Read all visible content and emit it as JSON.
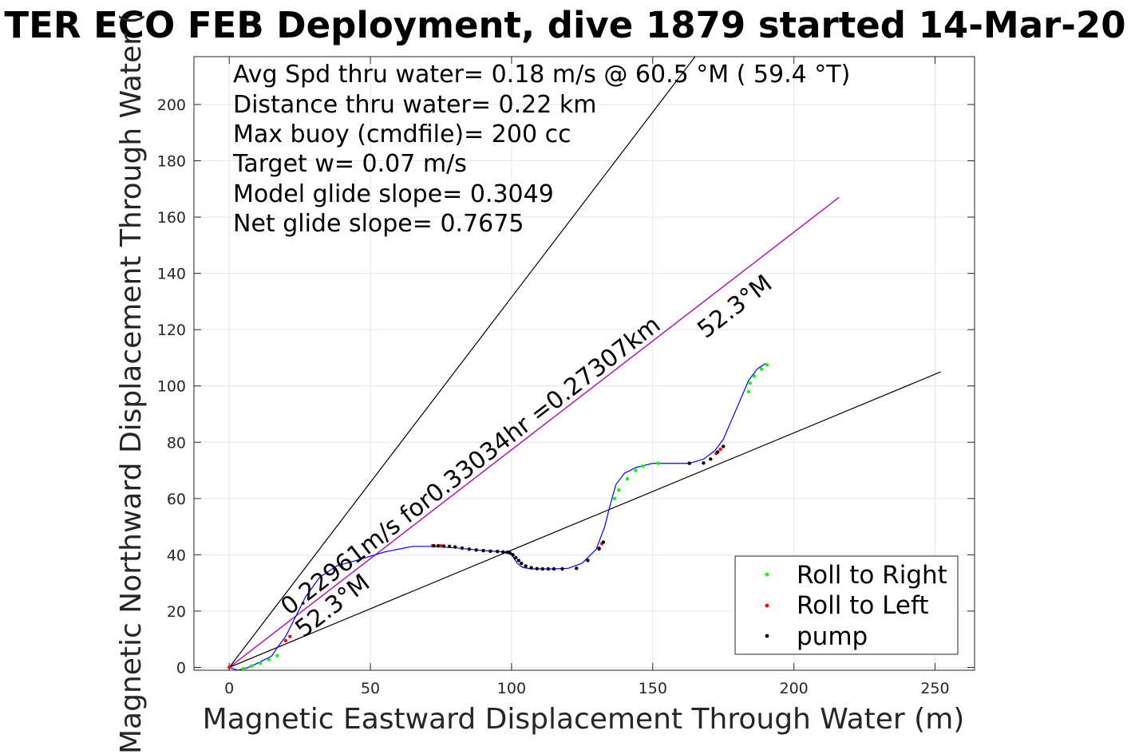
{
  "chart_data": {
    "type": "scatter",
    "title": "TER ECO FEB Deployment, dive 1879 started 14-Mar-20",
    "xlabel": "Magnetic Eastward Displacement Through Water (m)",
    "ylabel": "Magnetic Northward Displacement Through Water (",
    "xlim": [
      -12.5,
      264
    ],
    "ylim": [
      -1,
      217
    ],
    "xticks": [
      0,
      50,
      100,
      150,
      200,
      250
    ],
    "yticks": [
      0,
      20,
      40,
      60,
      80,
      100,
      120,
      140,
      160,
      180,
      200
    ],
    "grid": true,
    "legend_position": "bottom-right",
    "info_lines": [
      "Avg Spd thru water=  0.18 m/s @  60.5 °M ( 59.4 °T)",
      "Distance thru water=  0.22 km",
      "Max buoy (cmdfile)= 200 cc",
      "Target w= 0.07 m/s",
      "Model glide slope= 0.3049",
      "Net glide slope= 0.7675"
    ],
    "annotations": {
      "speed_text": "0.22961m/s for0.33034hr =0.27307km",
      "heading_upper": "52.3°M",
      "heading_lower": "52.3°M"
    },
    "reference_lines": [
      {
        "name": "steep-bound-line",
        "color": "#000000",
        "x": [
          0,
          165
        ],
        "y": [
          0,
          217
        ]
      },
      {
        "name": "heading-line",
        "color": "#000000",
        "x": [
          0,
          216
        ],
        "y": [
          0,
          167
        ]
      },
      {
        "name": "heading-line-overlay",
        "color": "#cc00cc",
        "x": [
          0,
          216
        ],
        "y": [
          0,
          167
        ]
      },
      {
        "name": "shallow-bound-line",
        "color": "#000000",
        "x": [
          0,
          252
        ],
        "y": [
          0,
          105
        ]
      }
    ],
    "track": {
      "color": "#0000ff",
      "x": [
        0,
        3,
        6,
        9,
        12,
        15,
        17,
        20,
        23,
        27,
        32,
        38,
        45,
        55,
        65,
        72,
        80,
        90,
        98,
        100,
        101,
        102,
        104,
        107,
        110,
        115,
        120,
        125,
        130,
        133,
        135,
        137,
        140,
        144,
        150,
        156,
        163,
        168,
        172,
        175,
        178,
        181,
        184,
        187,
        190
      ],
      "y": [
        0,
        -1,
        -0.3,
        1,
        2.5,
        4,
        7,
        11,
        17,
        25,
        32,
        36,
        38,
        41,
        43,
        43,
        42.5,
        41.5,
        41,
        40,
        38.5,
        37,
        35.5,
        35,
        35,
        35,
        35.2,
        37,
        42,
        50,
        58,
        65,
        69,
        71,
        72.5,
        72.5,
        72.5,
        74,
        77,
        81,
        88,
        95,
        102,
        106,
        108
      ]
    },
    "series": [
      {
        "name": "Roll to Right",
        "color": "#00ff00",
        "marker": "dot",
        "x": [
          5,
          8,
          11,
          14,
          17,
          136.5,
          138,
          141,
          144,
          146.5,
          152,
          184,
          184.5,
          186,
          188.5,
          190.5
        ],
        "y": [
          -0.5,
          0.5,
          1.5,
          2.8,
          4.2,
          60,
          63,
          67,
          70,
          71.5,
          72.5,
          98,
          101,
          103.5,
          106,
          107.5
        ]
      },
      {
        "name": "Roll to Left",
        "color": "#ff0000",
        "marker": "dot",
        "x": [
          0,
          20,
          21.5,
          72,
          75,
          131,
          132,
          172.5,
          174
        ],
        "y": [
          0,
          9.5,
          11,
          43.2,
          43.2,
          42,
          44,
          76,
          77.5
        ]
      },
      {
        "name": "pump",
        "color": "#000000",
        "marker": "dot",
        "x": [
          72.5,
          74,
          76,
          78,
          80,
          82.5,
          85,
          87.5,
          90,
          92.5,
          95,
          97,
          98.5,
          99.5,
          100.5,
          101.5,
          102.5,
          103.5,
          105,
          107,
          109,
          111,
          113,
          115,
          118,
          123,
          127,
          131,
          132.5,
          163,
          168,
          170.5,
          173,
          175
        ],
        "y": [
          43.2,
          43.2,
          43.1,
          43,
          42.8,
          42.4,
          42,
          41.7,
          41.5,
          41.3,
          41.2,
          41,
          40.9,
          40.6,
          40,
          39,
          38,
          37,
          36,
          35.4,
          35.1,
          35,
          35,
          35,
          35,
          35.2,
          38,
          42.3,
          44.5,
          72.5,
          72.6,
          74,
          76.5,
          78.5
        ]
      }
    ]
  }
}
